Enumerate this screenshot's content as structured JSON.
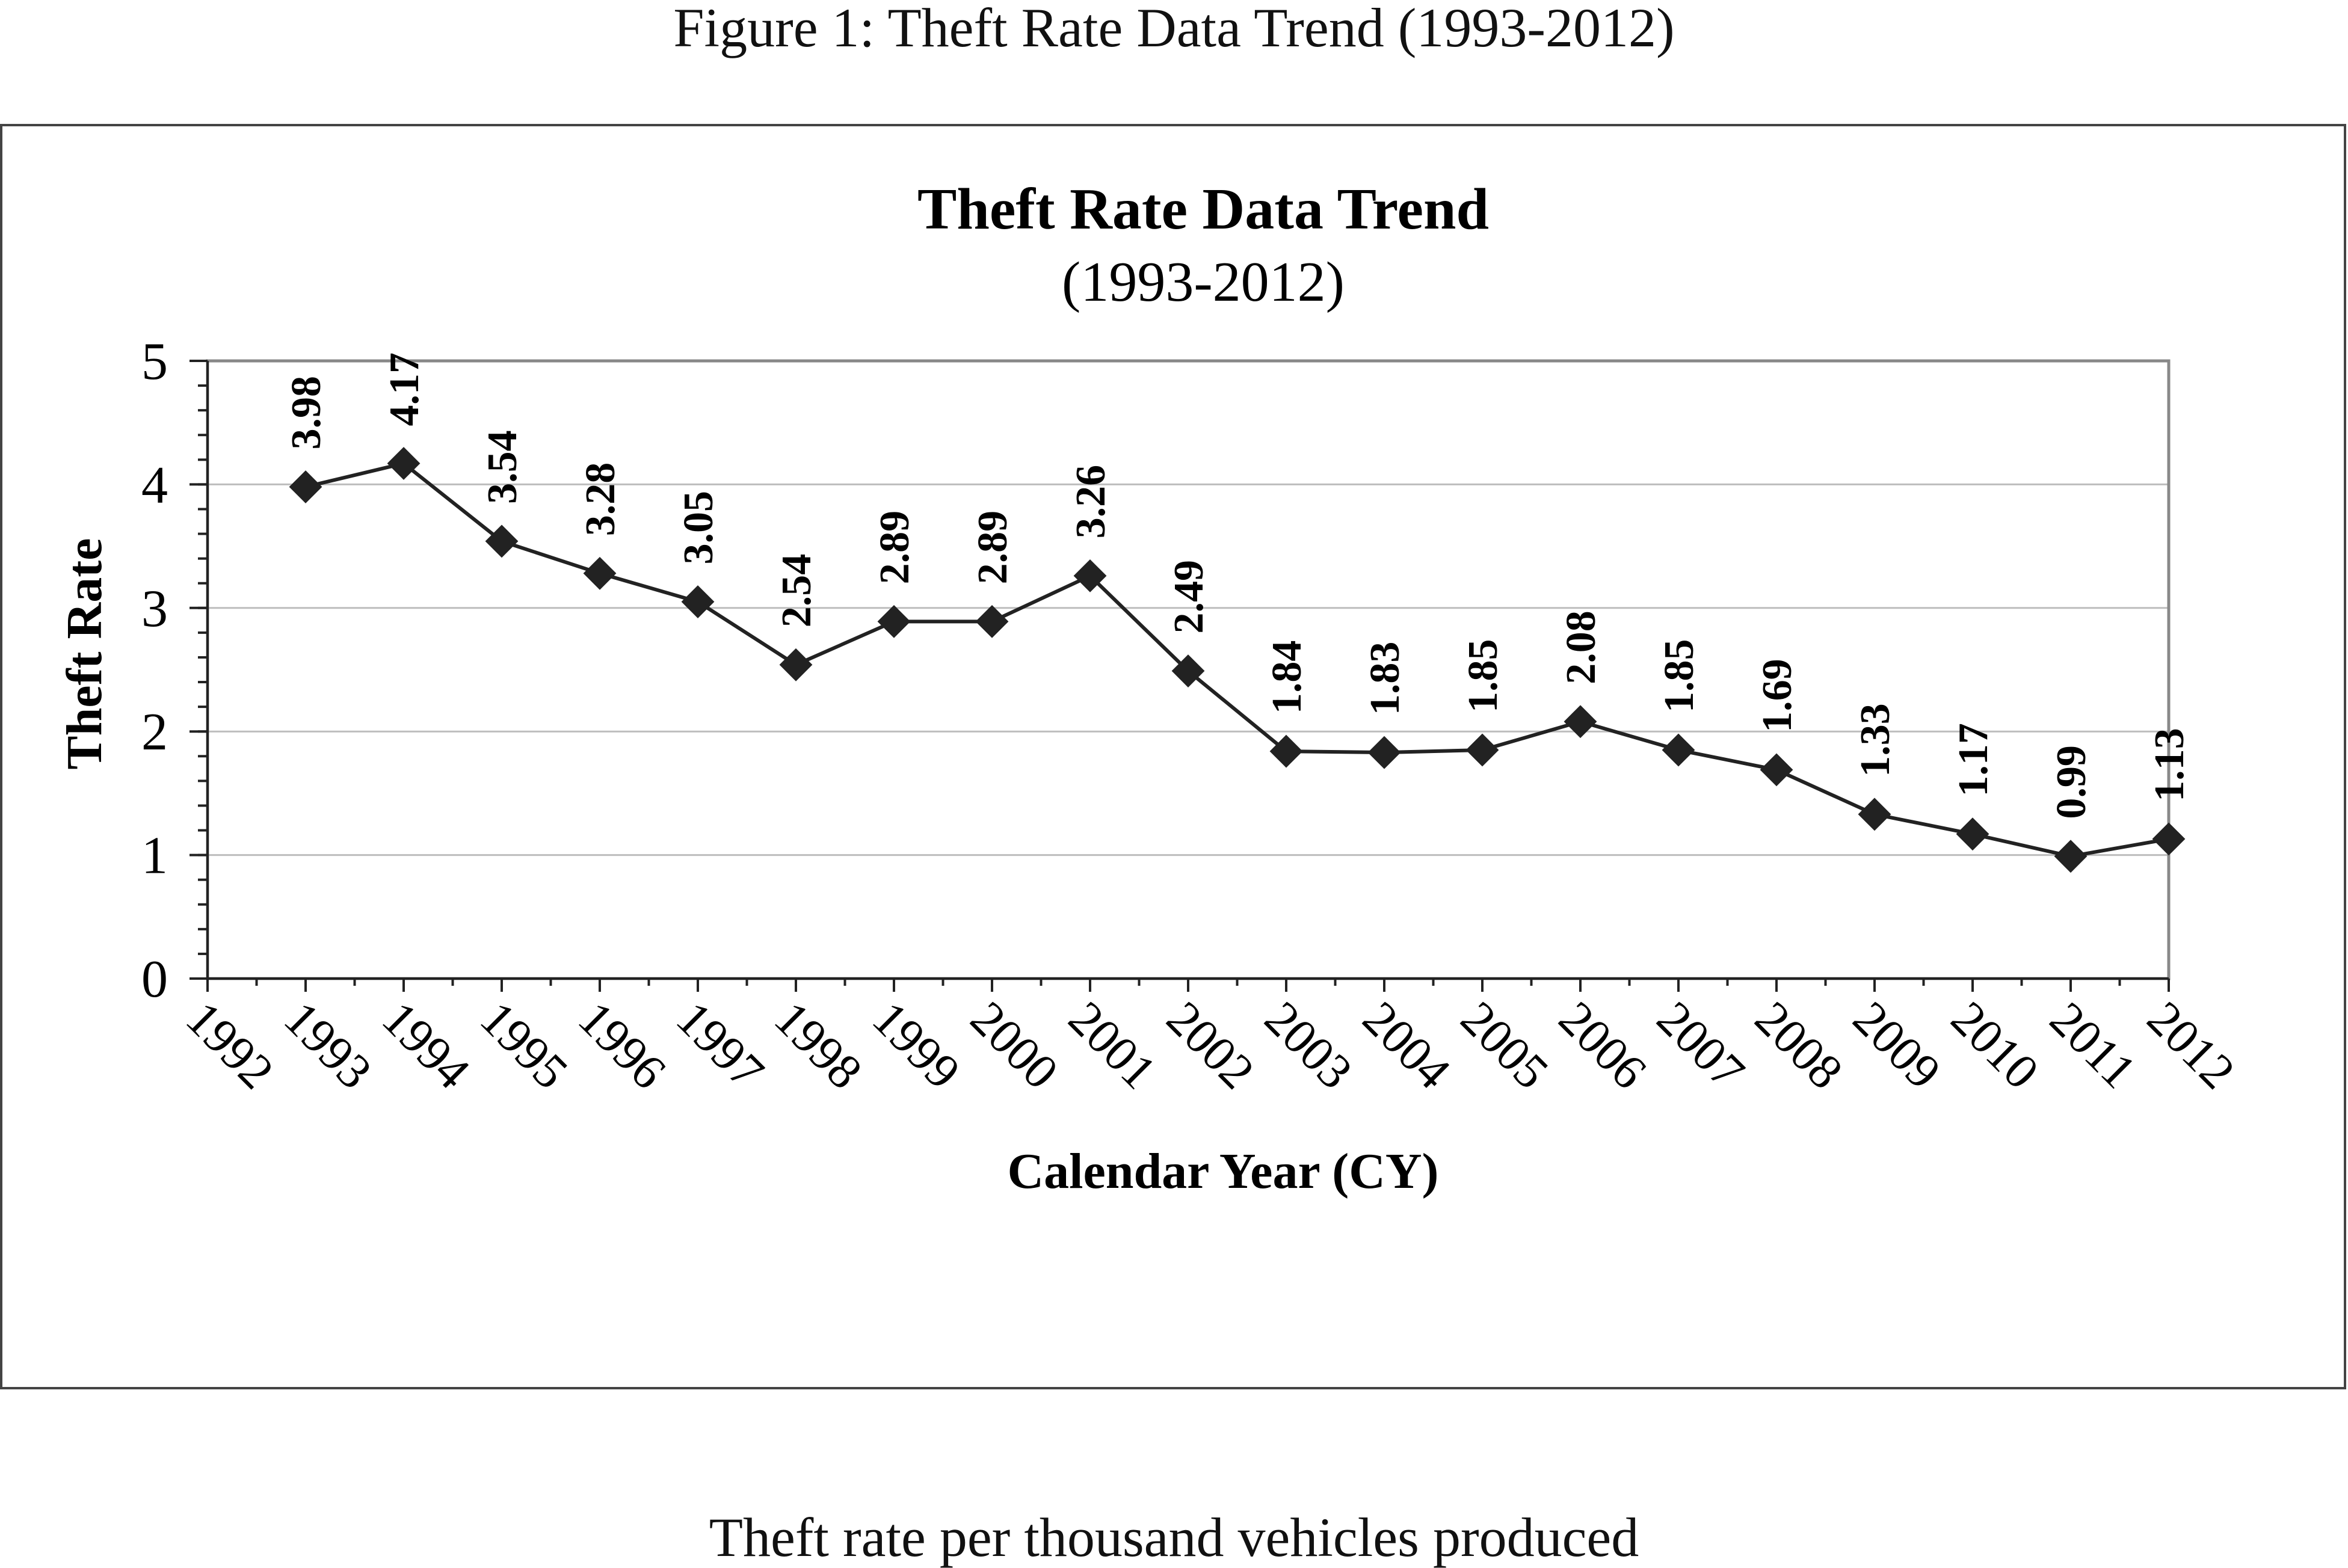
{
  "caption": "Figure 1:  Theft Rate Data Trend (1993-2012)",
  "footnote": "Theft rate per thousand vehicles produced",
  "chart_data": {
    "type": "line",
    "title": "Theft  Rate Data Trend",
    "subtitle": "(1993-2012)",
    "xlabel": "Calendar Year (CY)",
    "ylabel": "Theft Rate",
    "categories": [
      "1992",
      "1993",
      "1994",
      "1995",
      "1996",
      "1997",
      "1998",
      "1999",
      "2000",
      "2001",
      "2002",
      "2003",
      "2004",
      "2005",
      "2006",
      "2007",
      "2008",
      "2009",
      "2010",
      "2011",
      "2012"
    ],
    "x": [
      1993,
      1994,
      1995,
      1996,
      1997,
      1998,
      1999,
      2000,
      2001,
      2002,
      2003,
      2004,
      2005,
      2006,
      2007,
      2008,
      2009,
      2010,
      2011,
      2012
    ],
    "values": [
      3.98,
      4.17,
      3.54,
      3.28,
      3.05,
      2.54,
      2.89,
      2.89,
      3.26,
      2.49,
      1.84,
      1.83,
      1.85,
      2.08,
      1.85,
      1.69,
      1.33,
      1.17,
      0.99,
      1.13
    ],
    "data_labels": [
      "3.98",
      "4.17",
      "3.54",
      "3.28",
      "3.05",
      "2.54",
      "2.89",
      "2.89",
      "3.26",
      "2.49",
      "1.84",
      "1.83",
      "1.85",
      "2.08",
      "1.85",
      "1.69",
      "1.33",
      "1.17",
      "0.99",
      "1.13"
    ],
    "yticks": [
      "0",
      "1",
      "2",
      "3",
      "4",
      "5"
    ],
    "ylim": [
      0,
      5
    ],
    "xlim": [
      1992,
      2012
    ],
    "grid": true,
    "legend": "none",
    "marker": "diamond"
  }
}
